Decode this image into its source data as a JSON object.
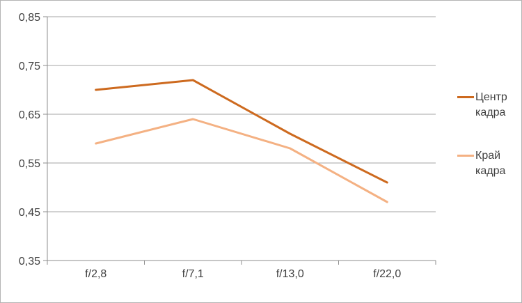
{
  "chart_data": {
    "type": "line",
    "categories": [
      "f/2,8",
      "f/7,1",
      "f/13,0",
      "f/22,0"
    ],
    "series": [
      {
        "name": "Центр кадра",
        "values": [
          0.7,
          0.72,
          0.61,
          0.51
        ],
        "color": "#cd6a1f"
      },
      {
        "name": "Край кадра",
        "values": [
          0.59,
          0.64,
          0.58,
          0.47
        ],
        "color": "#f4b183"
      }
    ],
    "title": "",
    "xlabel": "",
    "ylabel": "",
    "ylim": [
      0.35,
      0.85
    ],
    "ytick_step": 0.1,
    "ytick_labels": [
      "0,35",
      "0,45",
      "0,55",
      "0,65",
      "0,75",
      "0,85"
    ],
    "grid": true,
    "legend_position": "right"
  },
  "style": {
    "gridline_color": "#a6a6a6",
    "axis_color": "#8e8e8e",
    "text_color": "#404040",
    "line_width": 3
  }
}
